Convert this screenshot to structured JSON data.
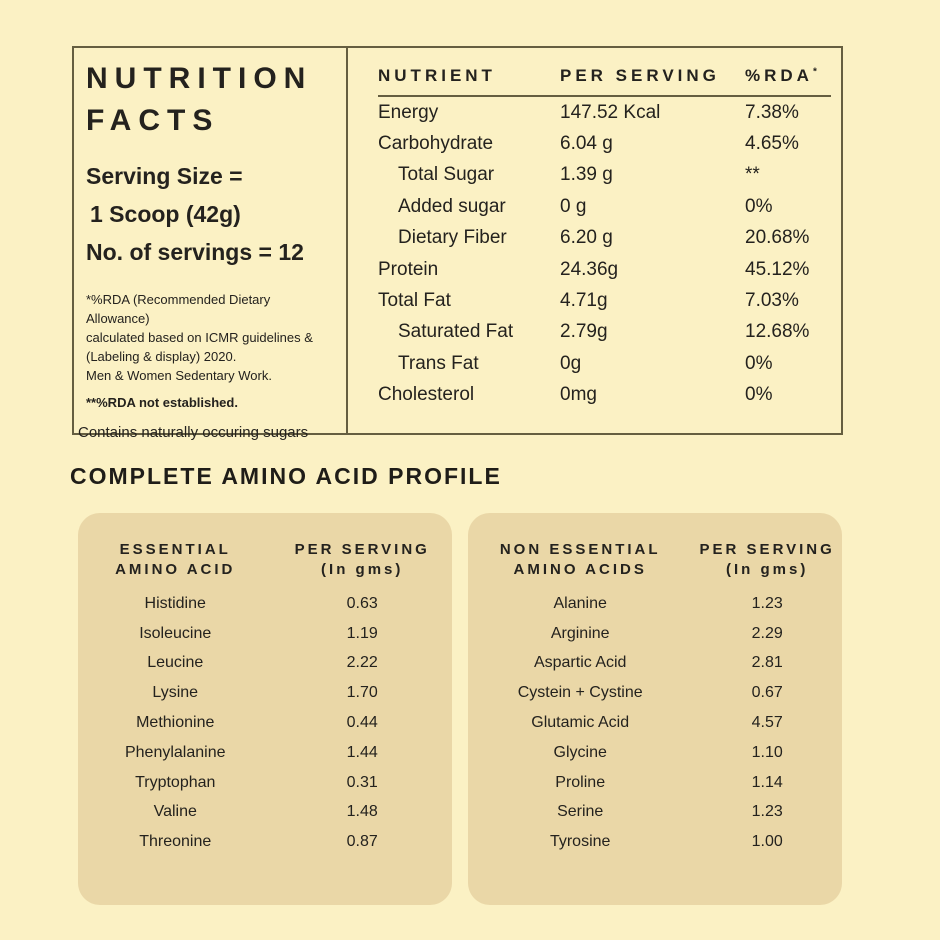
{
  "page": {
    "background_color": "#FBF1C4",
    "card_color": "#EAD7A7",
    "line_color": "#655E40",
    "text_color": "#24221E"
  },
  "facts_panel": {
    "title_line1": "NUTRITION",
    "title_line2": "FACTS",
    "serving_size_label": "Serving Size =",
    "serving_size_value": "1 Scoop (42g)",
    "servings_count": "No. of servings = 12",
    "rda_note_lines": [
      "*%RDA (Recommended Dietary Allowance)",
      "calculated based on ICMR guidelines &",
      "(Labeling & display) 2020.",
      "Men & Women Sedentary Work."
    ],
    "note_not_established": "**%RDA not established.",
    "note_sugars": "Contains naturally occuring sugars"
  },
  "nutrition_table": {
    "headers": {
      "nutrient": "NUTRIENT",
      "per_serving": "PER SERVING",
      "rda": "%RDA",
      "rda_superscript": "*"
    },
    "rows": [
      {
        "name": "Energy",
        "per_serving": "147.52 Kcal",
        "rda": "7.38%"
      },
      {
        "name": "Carbohydrate",
        "per_serving": "6.04 g",
        "rda": "4.65%"
      },
      {
        "name": "Total Sugar",
        "per_serving": "1.39 g",
        "rda": "**",
        "indent": true
      },
      {
        "name": "Added sugar",
        "per_serving": "0 g",
        "rda": "0%",
        "indent": true
      },
      {
        "name": "Dietary Fiber",
        "per_serving": "6.20 g",
        "rda": "20.68%",
        "indent": true
      },
      {
        "name": "Protein",
        "per_serving": "24.36g",
        "rda": "45.12%"
      },
      {
        "name": "Total Fat",
        "per_serving": "4.71g",
        "rda": "7.03%"
      },
      {
        "name": "Saturated Fat",
        "per_serving": "2.79g",
        "rda": "12.68%",
        "indent": true
      },
      {
        "name": "Trans Fat",
        "per_serving": "0g",
        "rda": "0%",
        "indent": true
      },
      {
        "name": "Cholesterol",
        "per_serving": "0mg",
        "rda": "0%"
      }
    ]
  },
  "amino_section": {
    "title": "COMPLETE AMINO ACID PROFILE",
    "essential": {
      "header_name_line1": "ESSENTIAL",
      "header_name_line2": "AMINO ACID",
      "header_value_line1": "PER SERVING",
      "header_value_line2": "(In gms)",
      "rows": [
        {
          "name": "Histidine",
          "value": "0.63"
        },
        {
          "name": "Isoleucine",
          "value": "1.19"
        },
        {
          "name": "Leucine",
          "value": "2.22"
        },
        {
          "name": "Lysine",
          "value": "1.70"
        },
        {
          "name": "Methionine",
          "value": "0.44"
        },
        {
          "name": "Phenylalanine",
          "value": "1.44"
        },
        {
          "name": "Tryptophan",
          "value": "0.31"
        },
        {
          "name": "Valine",
          "value": "1.48"
        },
        {
          "name": "Threonine",
          "value": "0.87"
        }
      ]
    },
    "non_essential": {
      "header_name_line1": "NON ESSENTIAL",
      "header_name_line2": "AMINO ACIDS",
      "header_value_line1": "PER SERVING",
      "header_value_line2": "(In gms)",
      "rows": [
        {
          "name": "Alanine",
          "value": "1.23"
        },
        {
          "name": "Arginine",
          "value": "2.29"
        },
        {
          "name": "Aspartic Acid",
          "value": "2.81"
        },
        {
          "name": "Cystein + Cystine",
          "value": "0.67"
        },
        {
          "name": "Glutamic Acid",
          "value": "4.57"
        },
        {
          "name": "Glycine",
          "value": "1.10"
        },
        {
          "name": "Proline",
          "value": "1.14"
        },
        {
          "name": "Serine",
          "value": "1.23"
        },
        {
          "name": "Tyrosine",
          "value": "1.00"
        }
      ]
    }
  }
}
